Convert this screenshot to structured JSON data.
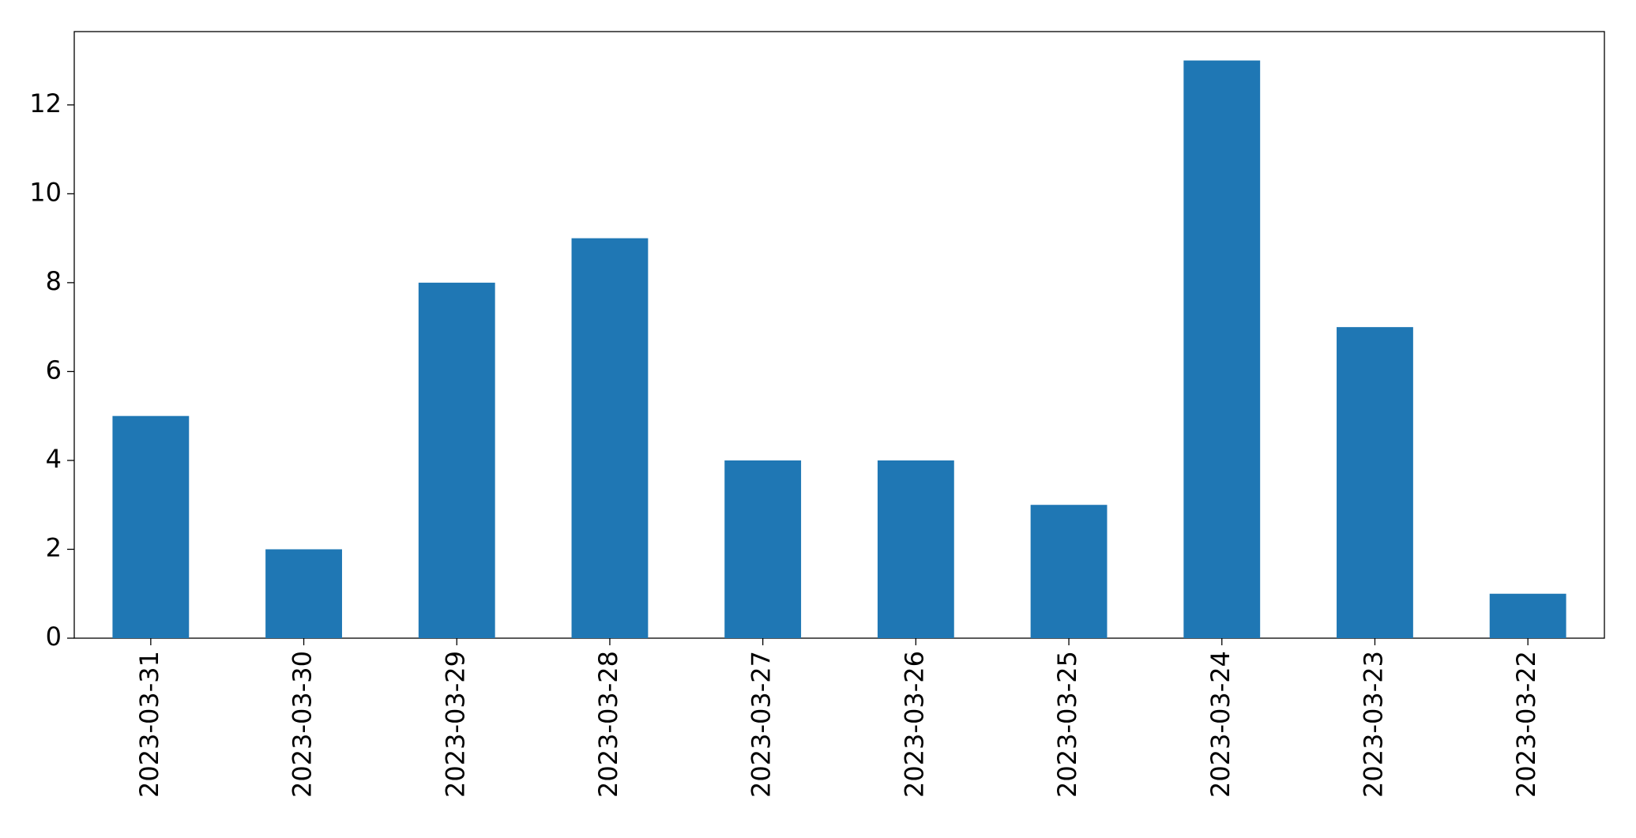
{
  "chart_data": {
    "type": "bar",
    "categories": [
      "2023-03-31",
      "2023-03-30",
      "2023-03-29",
      "2023-03-28",
      "2023-03-27",
      "2023-03-26",
      "2023-03-25",
      "2023-03-24",
      "2023-03-23",
      "2023-03-22"
    ],
    "values": [
      5,
      2,
      8,
      9,
      4,
      4,
      3,
      13,
      7,
      1
    ],
    "color": "#1f77b4",
    "ylim": [
      0,
      13.65
    ],
    "yticks": [
      0,
      2,
      4,
      6,
      8,
      10,
      12
    ],
    "grid": false
  }
}
